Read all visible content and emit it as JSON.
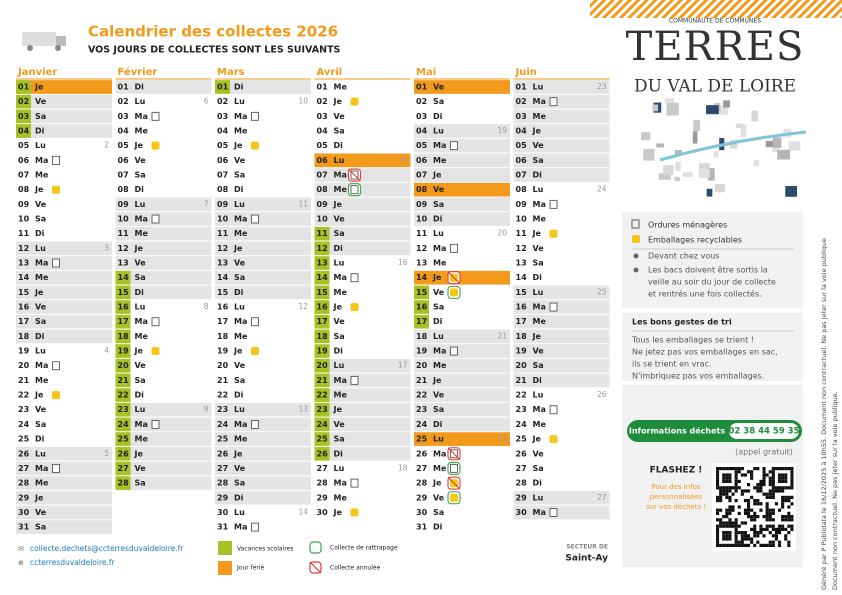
{
  "header": {
    "title": "Calendrier des collectes 2026",
    "subtitle": "VOS JOURS DE COLLECTES SONT LES SUIVANTS"
  },
  "logo": {
    "top": "COMMUNAUTÉ DE COMMUNES",
    "name": "TERRES",
    "sub": "DU VAL DE LOIRE"
  },
  "months": [
    {
      "name": "Janvier",
      "days": [
        {
          "n": "01",
          "w": "Je",
          "f": true,
          "v": true
        },
        {
          "n": "02",
          "w": "Ve",
          "v": true
        },
        {
          "n": "03",
          "w": "Sa",
          "v": true
        },
        {
          "n": "04",
          "w": "Di",
          "v": true
        },
        {
          "n": "05",
          "w": "Lu",
          "k": "2"
        },
        {
          "n": "06",
          "w": "Ma",
          "t": "om"
        },
        {
          "n": "07",
          "w": "Me"
        },
        {
          "n": "08",
          "w": "Je",
          "t": "emb"
        },
        {
          "n": "09",
          "w": "Ve"
        },
        {
          "n": "10",
          "w": "Sa"
        },
        {
          "n": "11",
          "w": "Di"
        },
        {
          "n": "12",
          "w": "Lu",
          "k": "3"
        },
        {
          "n": "13",
          "w": "Ma",
          "t": "om"
        },
        {
          "n": "14",
          "w": "Me"
        },
        {
          "n": "15",
          "w": "Je"
        },
        {
          "n": "16",
          "w": "Ve"
        },
        {
          "n": "17",
          "w": "Sa"
        },
        {
          "n": "18",
          "w": "Di"
        },
        {
          "n": "19",
          "w": "Lu",
          "k": "4"
        },
        {
          "n": "20",
          "w": "Ma",
          "t": "om"
        },
        {
          "n": "21",
          "w": "Me"
        },
        {
          "n": "22",
          "w": "Je",
          "t": "emb"
        },
        {
          "n": "23",
          "w": "Ve"
        },
        {
          "n": "24",
          "w": "Sa"
        },
        {
          "n": "25",
          "w": "Di"
        },
        {
          "n": "26",
          "w": "Lu",
          "k": "5"
        },
        {
          "n": "27",
          "w": "Ma",
          "t": "om"
        },
        {
          "n": "28",
          "w": "Me"
        },
        {
          "n": "29",
          "w": "Je"
        },
        {
          "n": "30",
          "w": "Ve"
        },
        {
          "n": "31",
          "w": "Sa"
        }
      ]
    },
    {
      "name": "Février",
      "days": [
        {
          "n": "01",
          "w": "Di"
        },
        {
          "n": "02",
          "w": "Lu",
          "k": "6"
        },
        {
          "n": "03",
          "w": "Ma",
          "t": "om"
        },
        {
          "n": "04",
          "w": "Me"
        },
        {
          "n": "05",
          "w": "Je",
          "t": "emb"
        },
        {
          "n": "06",
          "w": "Ve"
        },
        {
          "n": "07",
          "w": "Sa"
        },
        {
          "n": "08",
          "w": "Di"
        },
        {
          "n": "09",
          "w": "Lu",
          "k": "7"
        },
        {
          "n": "10",
          "w": "Ma",
          "t": "om"
        },
        {
          "n": "11",
          "w": "Me"
        },
        {
          "n": "12",
          "w": "Je"
        },
        {
          "n": "13",
          "w": "Ve"
        },
        {
          "n": "14",
          "w": "Sa",
          "v": true
        },
        {
          "n": "15",
          "w": "Di",
          "v": true
        },
        {
          "n": "16",
          "w": "Lu",
          "k": "8",
          "v": true
        },
        {
          "n": "17",
          "w": "Ma",
          "t": "om",
          "v": true
        },
        {
          "n": "18",
          "w": "Me",
          "v": true
        },
        {
          "n": "19",
          "w": "Je",
          "t": "emb",
          "v": true
        },
        {
          "n": "20",
          "w": "Ve",
          "v": true
        },
        {
          "n": "21",
          "w": "Sa",
          "v": true
        },
        {
          "n": "22",
          "w": "Di",
          "v": true
        },
        {
          "n": "23",
          "w": "Lu",
          "k": "9",
          "v": true
        },
        {
          "n": "24",
          "w": "Ma",
          "t": "om",
          "v": true
        },
        {
          "n": "25",
          "w": "Me",
          "v": true
        },
        {
          "n": "26",
          "w": "Je",
          "v": true
        },
        {
          "n": "27",
          "w": "Ve",
          "v": true
        },
        {
          "n": "28",
          "w": "Sa",
          "v": true
        }
      ]
    },
    {
      "name": "Mars",
      "days": [
        {
          "n": "01",
          "w": "Di",
          "v": true
        },
        {
          "n": "02",
          "w": "Lu",
          "k": "10"
        },
        {
          "n": "03",
          "w": "Ma",
          "t": "om"
        },
        {
          "n": "04",
          "w": "Me"
        },
        {
          "n": "05",
          "w": "Je",
          "t": "emb"
        },
        {
          "n": "06",
          "w": "Ve"
        },
        {
          "n": "07",
          "w": "Sa"
        },
        {
          "n": "08",
          "w": "Di"
        },
        {
          "n": "09",
          "w": "Lu",
          "k": "11"
        },
        {
          "n": "10",
          "w": "Ma",
          "t": "om"
        },
        {
          "n": "11",
          "w": "Me"
        },
        {
          "n": "12",
          "w": "Je"
        },
        {
          "n": "13",
          "w": "Ve"
        },
        {
          "n": "14",
          "w": "Sa"
        },
        {
          "n": "15",
          "w": "Di"
        },
        {
          "n": "16",
          "w": "Lu",
          "k": "12"
        },
        {
          "n": "17",
          "w": "Ma",
          "t": "om"
        },
        {
          "n": "18",
          "w": "Me"
        },
        {
          "n": "19",
          "w": "Je",
          "t": "emb"
        },
        {
          "n": "20",
          "w": "Ve"
        },
        {
          "n": "21",
          "w": "Sa"
        },
        {
          "n": "22",
          "w": "Di"
        },
        {
          "n": "23",
          "w": "Lu",
          "k": "13"
        },
        {
          "n": "24",
          "w": "Ma",
          "t": "om"
        },
        {
          "n": "25",
          "w": "Me"
        },
        {
          "n": "26",
          "w": "Je"
        },
        {
          "n": "27",
          "w": "Ve"
        },
        {
          "n": "28",
          "w": "Sa"
        },
        {
          "n": "29",
          "w": "Di"
        },
        {
          "n": "30",
          "w": "Lu",
          "k": "14"
        },
        {
          "n": "31",
          "w": "Ma",
          "t": "om"
        }
      ]
    },
    {
      "name": "Avril",
      "days": [
        {
          "n": "01",
          "w": "Me"
        },
        {
          "n": "02",
          "w": "Je",
          "t": "emb"
        },
        {
          "n": "03",
          "w": "Ve"
        },
        {
          "n": "04",
          "w": "Sa"
        },
        {
          "n": "05",
          "w": "Di"
        },
        {
          "n": "06",
          "w": "Lu",
          "k": "15",
          "f": true
        },
        {
          "n": "07",
          "w": "Ma",
          "t": "om",
          "s": "annulee"
        },
        {
          "n": "08",
          "w": "Me",
          "t": "om",
          "s": "rattrapage"
        },
        {
          "n": "09",
          "w": "Je"
        },
        {
          "n": "10",
          "w": "Ve"
        },
        {
          "n": "11",
          "w": "Sa",
          "v": true
        },
        {
          "n": "12",
          "w": "Di",
          "v": true
        },
        {
          "n": "13",
          "w": "Lu",
          "k": "16",
          "v": true
        },
        {
          "n": "14",
          "w": "Ma",
          "t": "om",
          "v": true
        },
        {
          "n": "15",
          "w": "Me",
          "v": true
        },
        {
          "n": "16",
          "w": "Je",
          "t": "emb",
          "v": true
        },
        {
          "n": "17",
          "w": "Ve",
          "v": true
        },
        {
          "n": "18",
          "w": "Sa",
          "v": true
        },
        {
          "n": "19",
          "w": "Di",
          "v": true
        },
        {
          "n": "20",
          "w": "Lu",
          "k": "17",
          "v": true
        },
        {
          "n": "21",
          "w": "Ma",
          "t": "om",
          "v": true
        },
        {
          "n": "22",
          "w": "Me",
          "v": true
        },
        {
          "n": "23",
          "w": "Je",
          "v": true
        },
        {
          "n": "24",
          "w": "Ve",
          "v": true
        },
        {
          "n": "25",
          "w": "Sa",
          "v": true
        },
        {
          "n": "26",
          "w": "Di",
          "v": true
        },
        {
          "n": "27",
          "w": "Lu",
          "k": "18"
        },
        {
          "n": "28",
          "w": "Ma",
          "t": "om"
        },
        {
          "n": "29",
          "w": "Me"
        },
        {
          "n": "30",
          "w": "Je",
          "t": "emb"
        }
      ]
    },
    {
      "name": "Mai",
      "days": [
        {
          "n": "01",
          "w": "Ve",
          "f": true
        },
        {
          "n": "02",
          "w": "Sa"
        },
        {
          "n": "03",
          "w": "Di"
        },
        {
          "n": "04",
          "w": "Lu",
          "k": "19"
        },
        {
          "n": "05",
          "w": "Ma",
          "t": "om"
        },
        {
          "n": "06",
          "w": "Me"
        },
        {
          "n": "07",
          "w": "Je"
        },
        {
          "n": "08",
          "w": "Ve",
          "f": true
        },
        {
          "n": "09",
          "w": "Sa"
        },
        {
          "n": "10",
          "w": "Di"
        },
        {
          "n": "11",
          "w": "Lu",
          "k": "20"
        },
        {
          "n": "12",
          "w": "Ma",
          "t": "om"
        },
        {
          "n": "13",
          "w": "Me"
        },
        {
          "n": "14",
          "w": "Je",
          "f": true,
          "t": "emb",
          "s": "annulee"
        },
        {
          "n": "15",
          "w": "Ve",
          "v": true,
          "t": "emb",
          "s": "rattrapage"
        },
        {
          "n": "16",
          "w": "Sa",
          "v": true
        },
        {
          "n": "17",
          "w": "Di",
          "v": true
        },
        {
          "n": "18",
          "w": "Lu",
          "k": "21"
        },
        {
          "n": "19",
          "w": "Ma",
          "t": "om"
        },
        {
          "n": "20",
          "w": "Me"
        },
        {
          "n": "21",
          "w": "Je"
        },
        {
          "n": "22",
          "w": "Ve"
        },
        {
          "n": "23",
          "w": "Sa"
        },
        {
          "n": "24",
          "w": "Di"
        },
        {
          "n": "25",
          "w": "Lu",
          "k": "22",
          "f": true
        },
        {
          "n": "26",
          "w": "Ma",
          "t": "om",
          "s": "annulee"
        },
        {
          "n": "27",
          "w": "Me",
          "t": "om",
          "s": "rattrapage"
        },
        {
          "n": "28",
          "w": "Je",
          "t": "emb",
          "s": "annulee"
        },
        {
          "n": "29",
          "w": "Ve",
          "t": "emb",
          "s": "rattrapage"
        },
        {
          "n": "30",
          "w": "Sa"
        },
        {
          "n": "31",
          "w": "Di"
        }
      ]
    },
    {
      "name": "Juin",
      "days": [
        {
          "n": "01",
          "w": "Lu",
          "k": "23"
        },
        {
          "n": "02",
          "w": "Ma",
          "t": "om"
        },
        {
          "n": "03",
          "w": "Me"
        },
        {
          "n": "04",
          "w": "Je"
        },
        {
          "n": "05",
          "w": "Ve"
        },
        {
          "n": "06",
          "w": "Sa"
        },
        {
          "n": "07",
          "w": "Di"
        },
        {
          "n": "08",
          "w": "Lu",
          "k": "24"
        },
        {
          "n": "09",
          "w": "Ma",
          "t": "om"
        },
        {
          "n": "10",
          "w": "Me"
        },
        {
          "n": "11",
          "w": "Je",
          "t": "emb"
        },
        {
          "n": "12",
          "w": "Ve"
        },
        {
          "n": "13",
          "w": "Sa"
        },
        {
          "n": "14",
          "w": "Di"
        },
        {
          "n": "15",
          "w": "Lu",
          "k": "25"
        },
        {
          "n": "16",
          "w": "Ma",
          "t": "om"
        },
        {
          "n": "17",
          "w": "Me"
        },
        {
          "n": "18",
          "w": "Je"
        },
        {
          "n": "19",
          "w": "Ve"
        },
        {
          "n": "20",
          "w": "Sa"
        },
        {
          "n": "21",
          "w": "Di"
        },
        {
          "n": "22",
          "w": "Lu",
          "k": "26"
        },
        {
          "n": "23",
          "w": "Ma",
          "t": "om"
        },
        {
          "n": "24",
          "w": "Me"
        },
        {
          "n": "25",
          "w": "Je",
          "t": "emb"
        },
        {
          "n": "26",
          "w": "Ve"
        },
        {
          "n": "27",
          "w": "Sa"
        },
        {
          "n": "28",
          "w": "Di"
        },
        {
          "n": "29",
          "w": "Lu",
          "k": "27"
        },
        {
          "n": "30",
          "w": "Ma",
          "t": "om"
        }
      ]
    }
  ],
  "legend": {
    "om": "Ordures ménagères",
    "emb": "Emballages recyclables",
    "place": "Devant chez vous",
    "note": [
      "Les bacs doivent être sortis la",
      "veille au soir du jour de collecte",
      "et rentrés une fois collectés."
    ]
  },
  "tips": {
    "title": "Les bons gestes de tri",
    "lines": [
      "Tous les emballages se trient !",
      "Ne jetez pas vos emballages en sac,",
      "ils se trient en vrac.",
      "N'imbriquez pas vos emballages."
    ]
  },
  "info": {
    "label": "Informations déchets",
    "phone": "02 38 44 59 35",
    "free": "(appel gratuit)"
  },
  "qr": {
    "title": "FLASHEZ !",
    "lines": [
      "Pour des infos",
      "personnalisées",
      "sur vos déchets !"
    ]
  },
  "footer": {
    "email": "collecte.dechets@ccterresduvaldeloire.fr",
    "site": "ccterresduvaldeloire.fr",
    "vacances": "Vacances scolaires",
    "ferie": "Jour férié",
    "rattrapage": "Collecte de rattrapage",
    "annulee": "Collecte annulée",
    "sector_label": "SECTEUR DE",
    "sector": "Saint-Ay"
  },
  "side": {
    "line1": "Généré par P Publidata le 16/12/2025 à 10h55. Document non contractuel. Ne pas jeter sur la voie publique.",
    "line2": "Document non contractuel. Ne pas jeter sur la voie publique."
  }
}
